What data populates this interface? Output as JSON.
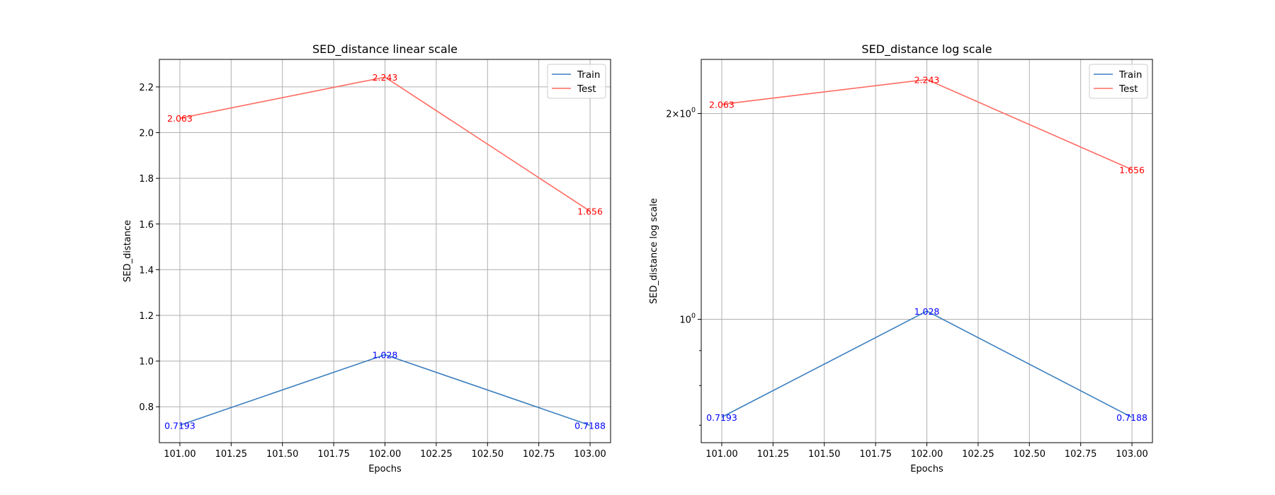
{
  "figure": {
    "background": "#ffffff"
  },
  "chart_data": [
    {
      "type": "line",
      "title": "SED_distance linear scale",
      "xlabel": "Epochs",
      "ylabel": "SED_distance",
      "yscale": "linear",
      "xlim": [
        100.9,
        103.1
      ],
      "ylim": [
        0.6428,
        2.3205
      ],
      "xticks": [
        101.0,
        101.25,
        101.5,
        101.75,
        102.0,
        102.25,
        102.5,
        102.75,
        103.0
      ],
      "xtick_labels": [
        "101.00",
        "101.25",
        "101.50",
        "101.75",
        "102.00",
        "102.25",
        "102.50",
        "102.75",
        "103.00"
      ],
      "yticks": [
        0.8,
        1.0,
        1.2,
        1.4,
        1.6,
        1.8,
        2.0,
        2.2
      ],
      "ytick_labels": [
        "0.8",
        "1.0",
        "1.2",
        "1.4",
        "1.6",
        "1.8",
        "2.0",
        "2.2"
      ],
      "minor_yticks": [],
      "grid": true,
      "legend_position": "top-right",
      "x": [
        101,
        102,
        103
      ],
      "series": [
        {
          "name": "Train",
          "color": "#3a7ebf",
          "label_color": "#0000ff",
          "values": [
            0.7193,
            1.028,
            0.7188
          ],
          "point_labels": [
            "0.7193",
            "1.028",
            "0.7188"
          ]
        },
        {
          "name": "Test",
          "color": "#ff6b61",
          "label_color": "#ff0000",
          "values": [
            2.063,
            2.243,
            1.656
          ],
          "point_labels": [
            "2.063",
            "2.243",
            "1.656"
          ]
        }
      ]
    },
    {
      "type": "line",
      "title": "SED_distance log scale",
      "xlabel": "Epochs",
      "ylabel": "SED_distance log scale",
      "yscale": "log",
      "xlim": [
        100.9,
        103.1
      ],
      "ylim": [
        0.66,
        2.4
      ],
      "xticks": [
        101.0,
        101.25,
        101.5,
        101.75,
        102.0,
        102.25,
        102.5,
        102.75,
        103.0
      ],
      "xtick_labels": [
        "101.00",
        "101.25",
        "101.50",
        "101.75",
        "102.00",
        "102.25",
        "102.50",
        "102.75",
        "103.00"
      ],
      "yticks": [
        1,
        2
      ],
      "ytick_labels": [
        "10^0",
        "2×10^0"
      ],
      "minor_yticks": [
        0.7,
        0.8,
        0.9
      ],
      "grid": true,
      "legend_position": "top-right",
      "x": [
        101,
        102,
        103
      ],
      "series": [
        {
          "name": "Train",
          "color": "#3a7ebf",
          "label_color": "#0000ff",
          "values": [
            0.7193,
            1.028,
            0.7188
          ],
          "point_labels": [
            "0.7193",
            "1.028",
            "0.7188"
          ]
        },
        {
          "name": "Test",
          "color": "#ff6b61",
          "label_color": "#ff0000",
          "values": [
            2.063,
            2.243,
            1.656
          ],
          "point_labels": [
            "2.063",
            "2.243",
            "1.656"
          ]
        }
      ]
    }
  ]
}
